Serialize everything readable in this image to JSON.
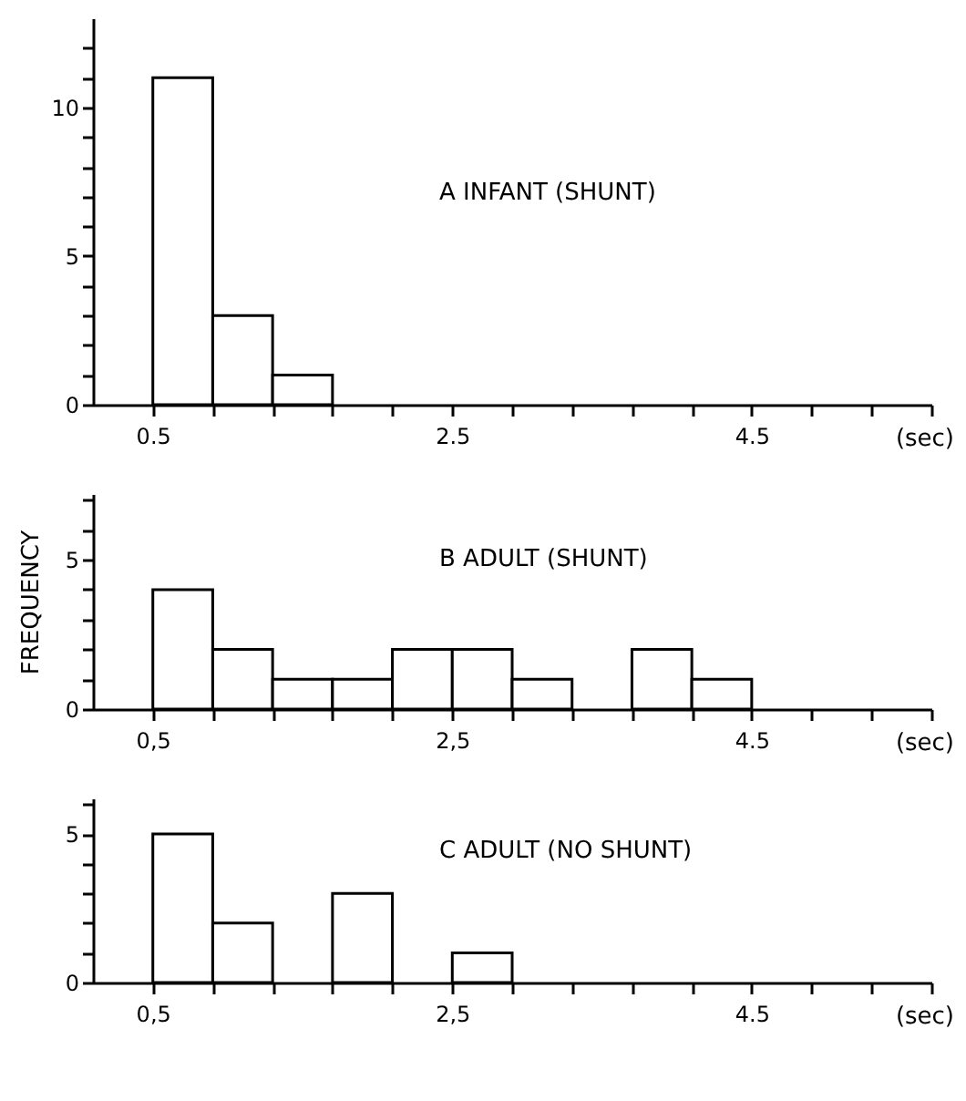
{
  "chart_data": [
    {
      "type": "histogram",
      "title": "A  INFANT (SHUNT)",
      "xlabel": "(sec)",
      "bins": [
        0.5,
        0.9,
        1.3,
        1.7
      ],
      "values": [
        11,
        3,
        1
      ],
      "color": "#ffffff",
      "xlim": [
        0.1,
        5.7
      ],
      "xticks": [
        {
          "value": 0.5,
          "label": "0.5"
        },
        {
          "value": 0.9,
          "label": null
        },
        {
          "value": 1.3,
          "label": null
        },
        {
          "value": 1.7,
          "label": null
        },
        {
          "value": 2.1,
          "label": null
        },
        {
          "value": 2.5,
          "label": "2.5"
        },
        {
          "value": 2.9,
          "label": null
        },
        {
          "value": 3.3,
          "label": null
        },
        {
          "value": 3.7,
          "label": null
        },
        {
          "value": 4.1,
          "label": null
        },
        {
          "value": 4.5,
          "label": "4.5"
        },
        {
          "value": 4.9,
          "label": null
        },
        {
          "value": 5.3,
          "label": null
        },
        {
          "value": 5.7,
          "label": null
        }
      ],
      "ylim": [
        0,
        13
      ],
      "yticks": [
        0,
        {
          "value": 1,
          "label": null
        },
        {
          "value": 2,
          "label": null
        },
        {
          "value": 3,
          "label": null
        },
        {
          "value": 4,
          "label": null
        },
        5,
        {
          "value": 6,
          "label": null
        },
        {
          "value": 7,
          "label": null
        },
        {
          "value": 8,
          "label": null
        },
        {
          "value": 9,
          "label": null
        },
        10,
        {
          "value": 11,
          "label": null
        },
        {
          "value": 12,
          "label": null
        }
      ]
    },
    {
      "type": "histogram",
      "title": "B  ADULT (SHUNT)",
      "xlabel": "(sec)",
      "ylabel": "FREQUENCY",
      "bins": [
        0.5,
        0.9,
        1.3,
        1.7,
        2.1,
        2.5,
        2.9,
        3.3,
        3.7,
        4.1,
        4.5
      ],
      "values": [
        4,
        2,
        1,
        1,
        2,
        2,
        1,
        0,
        2,
        1
      ],
      "color": "#ffffff",
      "xlim": [
        0.1,
        5.7
      ],
      "xticks": [
        {
          "value": 0.5,
          "label": "0,5"
        },
        {
          "value": 0.9,
          "label": null
        },
        {
          "value": 1.3,
          "label": null
        },
        {
          "value": 1.7,
          "label": null
        },
        {
          "value": 2.1,
          "label": null
        },
        {
          "value": 2.5,
          "label": "2,5"
        },
        {
          "value": 2.9,
          "label": null
        },
        {
          "value": 3.3,
          "label": null
        },
        {
          "value": 3.7,
          "label": null
        },
        {
          "value": 4.1,
          "label": null
        },
        {
          "value": 4.5,
          "label": "4.5"
        },
        {
          "value": 4.9,
          "label": null
        },
        {
          "value": 5.3,
          "label": null
        },
        {
          "value": 5.7,
          "label": null
        }
      ],
      "ylim": [
        0,
        7.2
      ],
      "yticks": [
        0,
        {
          "value": 1,
          "label": null
        },
        {
          "value": 2,
          "label": null
        },
        {
          "value": 3,
          "label": null
        },
        {
          "value": 4,
          "label": null
        },
        5,
        {
          "value": 6,
          "label": null
        },
        {
          "value": 7,
          "label": null
        }
      ]
    },
    {
      "type": "histogram",
      "title": "C  ADULT (NO SHUNT)",
      "xlabel": "(sec)",
      "bins": [
        0.5,
        0.9,
        1.3,
        1.7,
        2.1,
        2.5,
        2.9
      ],
      "values": [
        5,
        2,
        0,
        3,
        0,
        1
      ],
      "color": "#ffffff",
      "xlim": [
        0.1,
        5.7
      ],
      "xticks": [
        {
          "value": 0.5,
          "label": "0,5"
        },
        {
          "value": 0.9,
          "label": null
        },
        {
          "value": 1.3,
          "label": null
        },
        {
          "value": 1.7,
          "label": null
        },
        {
          "value": 2.1,
          "label": null
        },
        {
          "value": 2.5,
          "label": "2,5"
        },
        {
          "value": 2.9,
          "label": null
        },
        {
          "value": 3.3,
          "label": null
        },
        {
          "value": 3.7,
          "label": null
        },
        {
          "value": 4.1,
          "label": null
        },
        {
          "value": 4.5,
          "label": "4.5"
        },
        {
          "value": 4.9,
          "label": null
        },
        {
          "value": 5.3,
          "label": null
        },
        {
          "value": 5.7,
          "label": null
        }
      ],
      "ylim": [
        0,
        6.2
      ],
      "yticks": [
        0,
        {
          "value": 1,
          "label": null
        },
        {
          "value": 2,
          "label": null
        },
        {
          "value": 3,
          "label": null
        },
        {
          "value": 4,
          "label": null
        },
        5,
        {
          "value": 6,
          "label": null
        }
      ]
    }
  ]
}
